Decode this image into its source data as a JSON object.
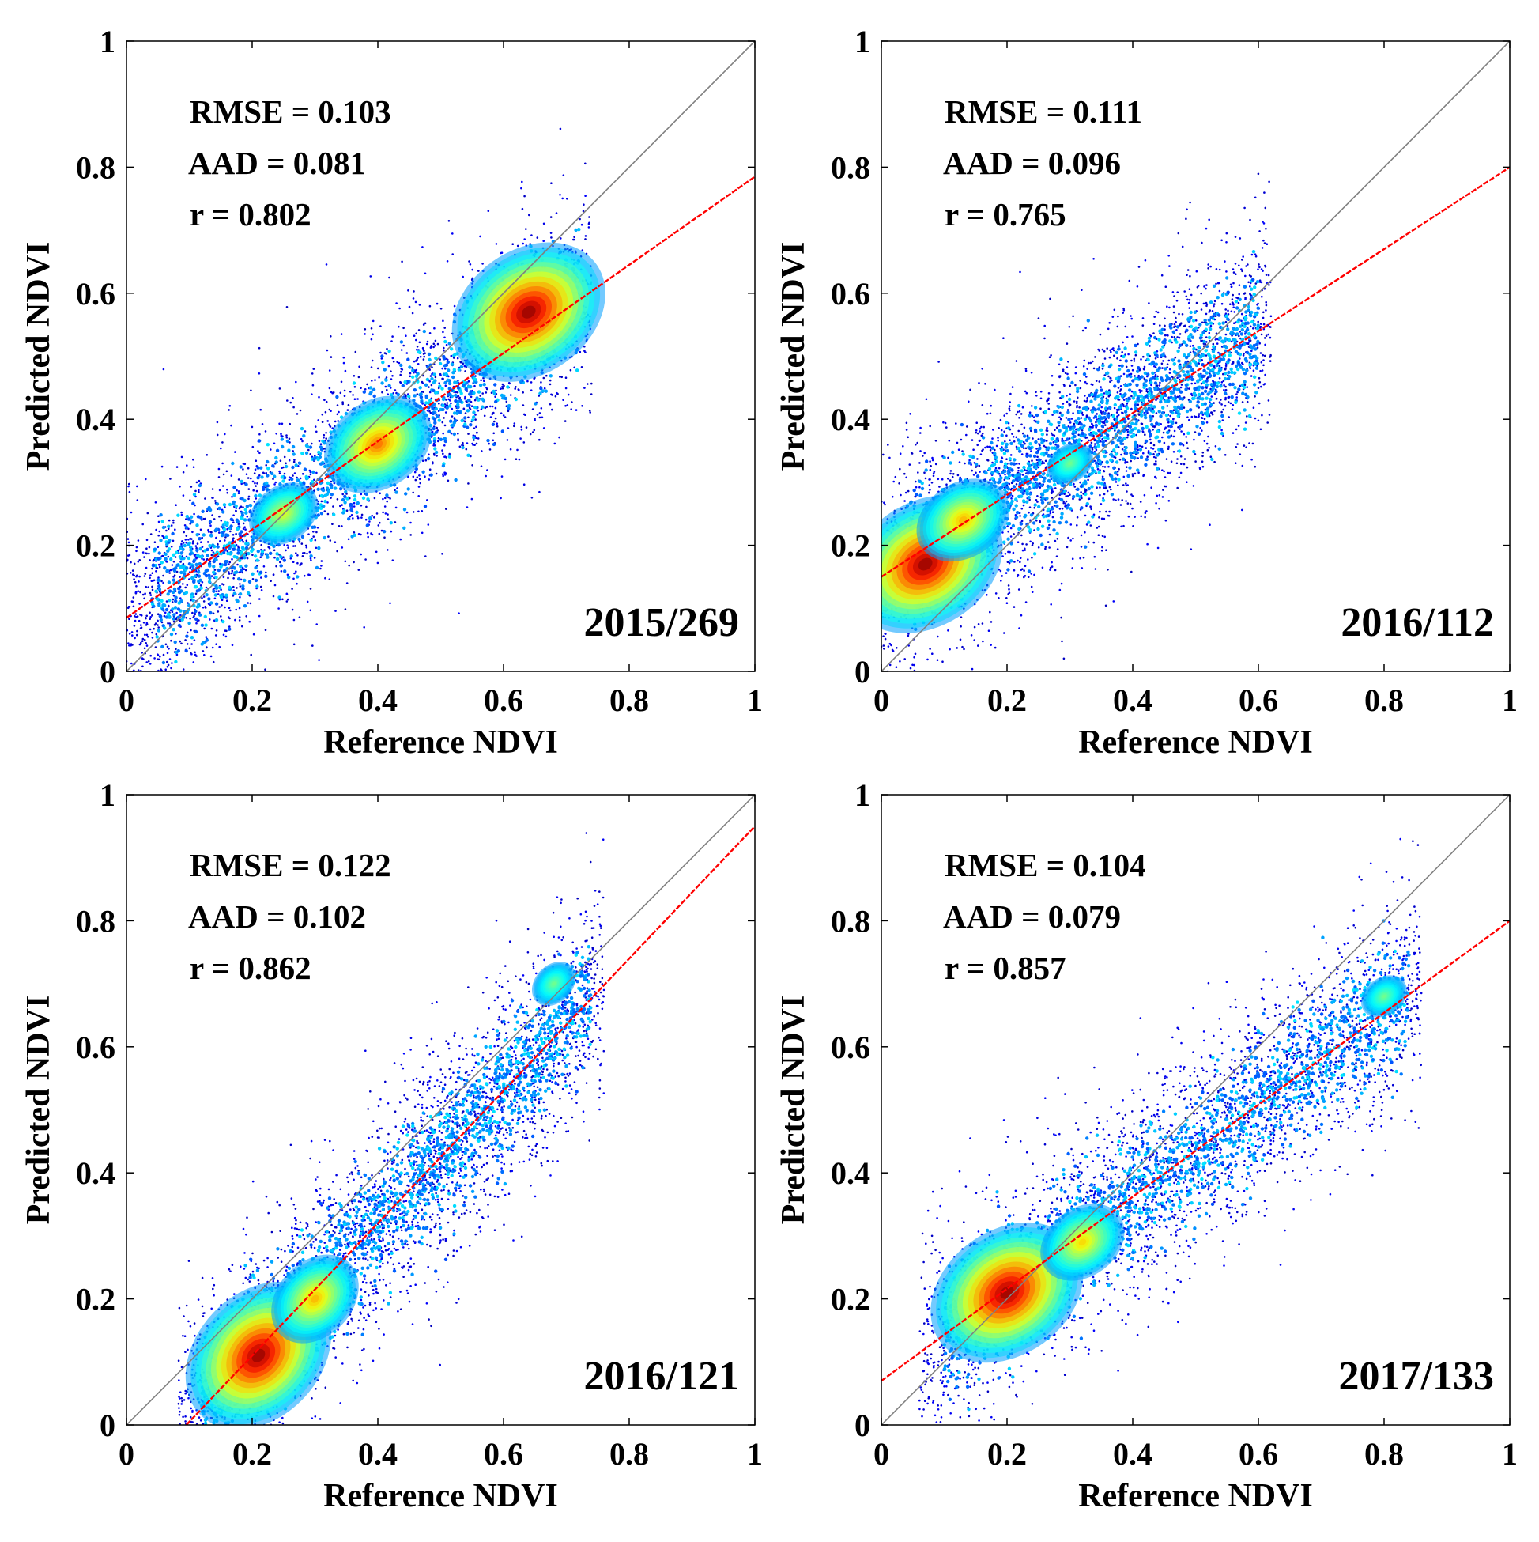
{
  "figure": {
    "colormap": [
      "#00008f",
      "#0000ff",
      "#0080ff",
      "#00ffff",
      "#80ff80",
      "#ffff00",
      "#ff8000",
      "#ff0000",
      "#800000"
    ],
    "identity_line_color": "#808080",
    "fit_line_color": "#ff0000",
    "axes_color": "#000000"
  },
  "chart_data": [
    {
      "type": "scatter",
      "subtype": "density-scatter",
      "xlabel": "Reference NDVI",
      "ylabel": "Predicted NDVI",
      "xlim": [
        0,
        1
      ],
      "ylim": [
        0,
        1
      ],
      "xticks": [
        "0",
        "0.2",
        "0.4",
        "0.6",
        "0.8",
        "1"
      ],
      "yticks": [
        "0",
        "0.2",
        "0.4",
        "0.6",
        "0.8",
        "1"
      ],
      "date_label": "2015/269",
      "stats": {
        "rmse": "RMSE = 0.103",
        "aad": "AAD = 0.081",
        "r": "r =  0.802"
      },
      "fit_line": {
        "slope": 0.7,
        "intercept": 0.085
      },
      "identity_line": {
        "slope": 1,
        "intercept": 0
      },
      "x_range": [
        0.0,
        0.74
      ],
      "density_peaks": [
        {
          "x": 0.64,
          "y": 0.57,
          "weight": 1.0
        },
        {
          "x": 0.4,
          "y": 0.36,
          "weight": 0.7
        },
        {
          "x": 0.25,
          "y": 0.25,
          "weight": 0.45
        }
      ]
    },
    {
      "type": "scatter",
      "subtype": "density-scatter",
      "xlabel": "Reference NDVI",
      "ylabel": "Predicted NDVI",
      "xlim": [
        0,
        1
      ],
      "ylim": [
        0,
        1
      ],
      "xticks": [
        "0",
        "0.2",
        "0.4",
        "0.6",
        "0.8",
        "1"
      ],
      "yticks": [
        "0",
        "0.2",
        "0.4",
        "0.6",
        "0.8",
        "1"
      ],
      "date_label": "2016/112",
      "stats": {
        "rmse": "RMSE = 0.111",
        "aad": "AAD = 0.096",
        "r": "r =  0.765"
      },
      "fit_line": {
        "slope": 0.65,
        "intercept": 0.15
      },
      "identity_line": {
        "slope": 1,
        "intercept": 0
      },
      "x_range": [
        0.0,
        0.62
      ],
      "density_peaks": [
        {
          "x": 0.07,
          "y": 0.17,
          "weight": 1.0
        },
        {
          "x": 0.13,
          "y": 0.24,
          "weight": 0.6
        },
        {
          "x": 0.3,
          "y": 0.33,
          "weight": 0.3
        }
      ]
    },
    {
      "type": "scatter",
      "subtype": "density-scatter",
      "xlabel": "Reference NDVI",
      "ylabel": "Predicted NDVI",
      "xlim": [
        0,
        1
      ],
      "ylim": [
        0,
        1
      ],
      "xticks": [
        "0",
        "0.2",
        "0.4",
        "0.6",
        "0.8",
        "1"
      ],
      "yticks": [
        "0",
        "0.2",
        "0.4",
        "0.6",
        "0.8",
        "1"
      ],
      "date_label": "2016/121",
      "stats": {
        "rmse": "RMSE = 0.122",
        "aad": "AAD = 0.102",
        "r": "r =  0.862"
      },
      "fit_line": {
        "slope": 1.05,
        "intercept": -0.1
      },
      "identity_line": {
        "slope": 1,
        "intercept": 0
      },
      "x_range": [
        0.08,
        0.76
      ],
      "density_peaks": [
        {
          "x": 0.21,
          "y": 0.11,
          "weight": 1.0
        },
        {
          "x": 0.3,
          "y": 0.2,
          "weight": 0.6
        },
        {
          "x": 0.68,
          "y": 0.7,
          "weight": 0.3
        }
      ]
    },
    {
      "type": "scatter",
      "subtype": "density-scatter",
      "xlabel": "Reference NDVI",
      "ylabel": "Predicted NDVI",
      "xlim": [
        0,
        1
      ],
      "ylim": [
        0,
        1
      ],
      "xticks": [
        "0",
        "0.2",
        "0.4",
        "0.6",
        "0.8",
        "1"
      ],
      "yticks": [
        "0",
        "0.2",
        "0.4",
        "0.6",
        "0.8",
        "1"
      ],
      "date_label": "2017/133",
      "stats": {
        "rmse": "RMSE = 0.104",
        "aad": "AAD = 0.079",
        "r": "r =  0.857"
      },
      "fit_line": {
        "slope": 0.73,
        "intercept": 0.07
      },
      "identity_line": {
        "slope": 1,
        "intercept": 0
      },
      "x_range": [
        0.06,
        0.86
      ],
      "density_peaks": [
        {
          "x": 0.2,
          "y": 0.21,
          "weight": 1.0
        },
        {
          "x": 0.32,
          "y": 0.29,
          "weight": 0.55
        },
        {
          "x": 0.8,
          "y": 0.68,
          "weight": 0.3
        }
      ]
    }
  ]
}
